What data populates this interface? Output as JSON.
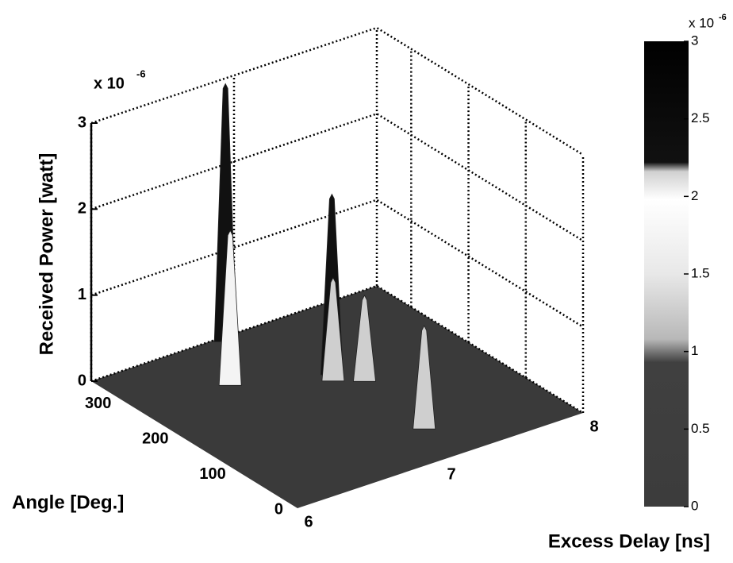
{
  "chart_data": {
    "type": "surface3d",
    "zlabel": "Received Power [watt]",
    "xlabel": "Angle [Deg.]",
    "ylabel": "Excess Delay [ns]",
    "zscale_label": "x 10",
    "zscale_exponent": "-6",
    "xlim": [
      0,
      360
    ],
    "xticks": [
      0,
      100,
      200,
      300
    ],
    "ylim": [
      6,
      8
    ],
    "yticks": [
      6,
      7,
      8
    ],
    "zlim": [
      0,
      3
    ],
    "zticks": [
      0,
      1,
      2,
      3
    ],
    "x": [
      350,
      224,
      267,
      212,
      192,
      68
    ],
    "y": [
      6.9,
      7.14,
      6.6,
      7.1,
      7.24,
      7.16
    ],
    "z": [
      3.0,
      2.1,
      1.8,
      1.2,
      1.0,
      1.2
    ],
    "grid": true,
    "colorbar": {
      "lim": [
        0,
        3
      ],
      "ticks": [
        0,
        0.5,
        1,
        1.5,
        2,
        2.5,
        3
      ],
      "scale_label": "x 10",
      "scale_exponent": "-6"
    }
  }
}
